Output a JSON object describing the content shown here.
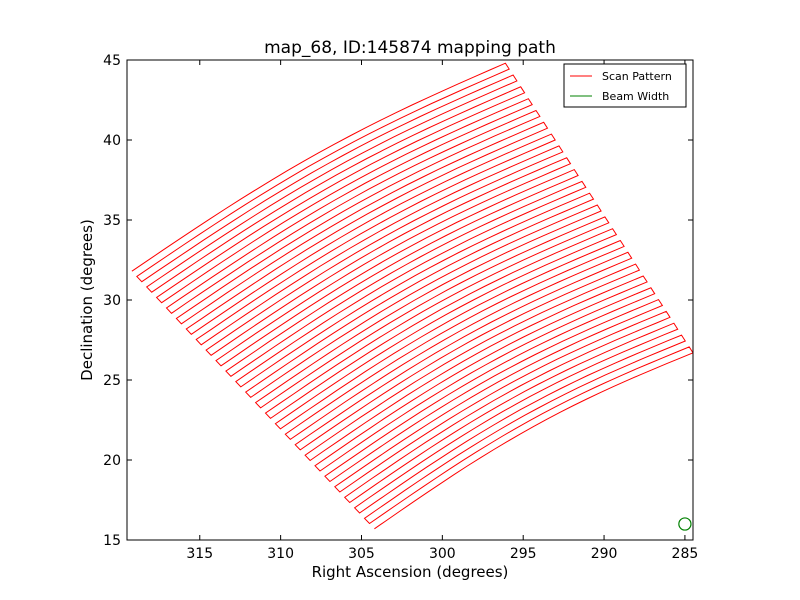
{
  "chart_data": {
    "type": "line",
    "title": "map_68, ID:145874 mapping path",
    "xlabel": "Right Ascension (degrees)",
    "ylabel": "Declination (degrees)",
    "xlim": [
      319.5,
      284.5
    ],
    "ylim": [
      15,
      45
    ],
    "x_ticks": [
      315,
      310,
      305,
      300,
      295,
      290,
      285
    ],
    "x_tick_labels": [
      "315",
      "310",
      "305",
      "300",
      "295",
      "290",
      "285"
    ],
    "y_ticks": [
      15,
      20,
      25,
      30,
      35,
      40,
      45
    ],
    "y_tick_labels": [
      "15",
      "20",
      "25",
      "30",
      "35",
      "40",
      "45"
    ],
    "grid": false,
    "legend_position": "top-right",
    "series": [
      {
        "name": "Scan Pattern",
        "color": "#ff0000",
        "corners": {
          "north_west": [
            319.2,
            31.8
          ],
          "north_east": [
            296.1,
            44.8
          ],
          "south_west": [
            304.2,
            15.7
          ],
          "south_east": [
            284.5,
            26.7
          ]
        },
        "num_scan_lines": 50
      },
      {
        "name": "Beam Width",
        "color": "#008000",
        "center": [
          285.0,
          16.0
        ],
        "diameter_deg": 0.75
      }
    ],
    "legend": [
      {
        "label": "Scan Pattern",
        "color": "#ff0000"
      },
      {
        "label": "Beam Width",
        "color": "#008000"
      }
    ]
  }
}
